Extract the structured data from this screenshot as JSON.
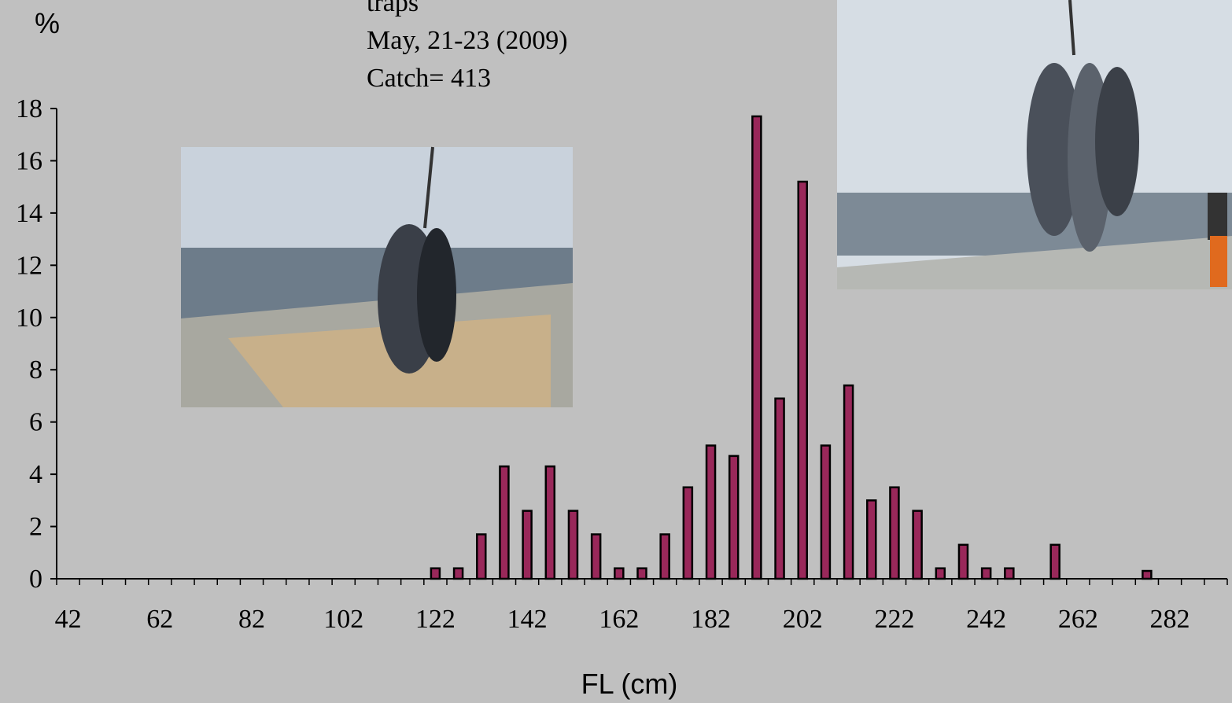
{
  "chart_data": {
    "type": "bar",
    "title_lines": [
      "traps",
      "May, 21-23 (2009)",
      "Catch= 413"
    ],
    "y_label": "%",
    "x_label": "FL (cm)",
    "categories": [
      "42",
      null,
      null,
      null,
      "62",
      null,
      null,
      null,
      "82",
      null,
      null,
      null,
      "102",
      null,
      null,
      null,
      "122",
      null,
      null,
      null,
      "142",
      null,
      null,
      null,
      "162",
      null,
      null,
      null,
      "182",
      null,
      null,
      null,
      "202",
      null,
      null,
      null,
      "222",
      null,
      null,
      null,
      "242",
      null,
      null,
      null,
      "262",
      null,
      null,
      null,
      "282",
      null,
      null
    ],
    "values": [
      0,
      0,
      0,
      0,
      0,
      0,
      0,
      0,
      0,
      0,
      0,
      0,
      0,
      0,
      0,
      0,
      0.4,
      0.4,
      1.7,
      4.3,
      2.6,
      4.3,
      2.6,
      1.7,
      0.4,
      0.4,
      1.7,
      3.5,
      5.1,
      4.7,
      17.7,
      6.9,
      15.2,
      5.1,
      7.4,
      3.0,
      3.5,
      2.6,
      0.4,
      1.3,
      0.4,
      0.4,
      0,
      1.3,
      0,
      0,
      0,
      0.3,
      0,
      0,
      0
    ],
    "color": "#99285a",
    "ylim": [
      0,
      18
    ],
    "yticks": [
      0,
      2,
      4,
      6,
      8,
      10,
      12,
      14,
      16,
      18
    ]
  }
}
